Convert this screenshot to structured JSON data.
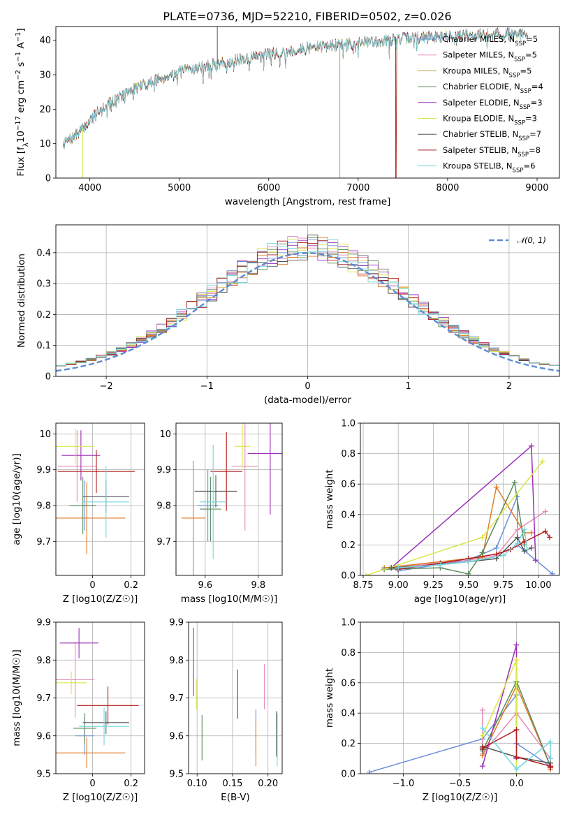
{
  "figure": {
    "title": "PLATE=0736, MJD=52210, FIBERID=0502, z=0.026"
  },
  "colors": {
    "Chabrier MILES": "#6a8fd6",
    "Salpeter MILES": "#e58ab8",
    "Kroupa MILES": "#c1a13a",
    "Chabrier ELODIE": "#5b8a5b",
    "Salpeter ELODIE": "#9b2fb8",
    "Kroupa ELODIE": "#d8e64a",
    "Chabrier STELIB": "#555555",
    "Salpeter STELIB": "#b01c1c",
    "Kroupa STELIB": "#72d6dc",
    "ELODIE green": "#5b8a5b",
    "Kroupa MILES age panels": "#e07b25"
  },
  "chart_data": [
    {
      "id": "spectrum",
      "type": "line",
      "xlabel": "wavelength [Angstrom, rest frame]",
      "ylabel": "Flux [f_λ10^-17 erg cm^-2 s^-1 A^-1]",
      "xlim": [
        3620,
        9250
      ],
      "ylim": [
        0,
        44
      ],
      "xticks": [
        4000,
        5000,
        6000,
        7000,
        8000,
        9000
      ],
      "yticks": [
        0,
        10,
        20,
        30,
        40
      ],
      "legend_position": "top-right",
      "legend": [
        {
          "model": "Chabrier MILES",
          "nssp": "5"
        },
        {
          "model": "Salpeter MILES",
          "nssp": "5"
        },
        {
          "model": "Kroupa MILES",
          "nssp": "5"
        },
        {
          "model": "Chabrier ELODIE",
          "nssp": "4"
        },
        {
          "model": "Salpeter ELODIE",
          "nssp": "3"
        },
        {
          "model": "Kroupa ELODIE",
          "nssp": "3"
        },
        {
          "model": "Chabrier STELIB",
          "nssp": "7"
        },
        {
          "model": "Salpeter STELIB",
          "nssp": "8"
        },
        {
          "model": "Kroupa STELIB",
          "nssp": "6"
        }
      ],
      "continuum": {
        "x": [
          3700,
          3800,
          3950,
          4100,
          4300,
          4500,
          4700,
          4900,
          5100,
          5300,
          5500,
          5700,
          5900,
          6100,
          6300,
          6500,
          6700,
          6900,
          7100,
          7300,
          7500,
          7700,
          7900,
          8100,
          8300,
          8500,
          8700,
          8900
        ],
        "y": [
          10,
          11.5,
          15,
          20,
          23,
          26,
          28,
          30,
          31.5,
          32.5,
          33.5,
          34.5,
          35.5,
          36.5,
          37,
          38,
          38.5,
          39,
          39.5,
          40,
          40.5,
          41,
          41,
          41.5,
          41.5,
          42,
          42,
          41.5
        ]
      },
      "features": [
        {
          "name": "Kroupa ELODIE dip near 3920",
          "x": 3920,
          "y": 0
        },
        {
          "name": "Chabrier STELIB spike near 5425",
          "x": 5425,
          "y": 44
        },
        {
          "name": "Kroupa MILES drop near 6795",
          "x": 6795,
          "y": 0
        },
        {
          "name": "Kroupa MILES cutoff near 7420",
          "x": 7420,
          "y": 0
        },
        {
          "name": "Salpeter STELIB cutoff near 7420",
          "x": 7420,
          "y": 0
        }
      ]
    },
    {
      "id": "residuals",
      "type": "step-histogram",
      "xlabel": "(data-model)/error",
      "ylabel": "Normed distribution",
      "xlim": [
        -2.5,
        2.5
      ],
      "ylim": [
        0,
        0.49
      ],
      "xticks": [
        -2,
        -1,
        0,
        1,
        2
      ],
      "yticks": [
        0.0,
        0.1,
        0.2,
        0.3,
        0.4
      ],
      "legend_position": "top-right",
      "reference_curve": {
        "label": "N(0,1)",
        "mu": 0,
        "sigma": 1
      },
      "bin_width": 0.1,
      "envelope_peak": 0.4
    },
    {
      "id": "age-vs-Z",
      "type": "errorbar",
      "xlabel": "Z [log10(Z/Z☉)]",
      "ylabel": "age  [log10(age/yr)]",
      "xlim": [
        -0.19,
        0.27
      ],
      "ylim": [
        9.605,
        10.03
      ],
      "xticks": [
        0.0,
        0.2
      ],
      "yticks": [
        9.7,
        9.8,
        9.9,
        10.0
      ],
      "points": [
        {
          "model": "Chabrier MILES",
          "x": -0.04,
          "xerr": 0.06,
          "y": 9.8,
          "yerr": 0.07
        },
        {
          "model": "Salpeter MILES",
          "x": -0.08,
          "xerr": 0.1,
          "y": 9.91,
          "yerr": 0.1
        },
        {
          "model": "Kroupa MILES",
          "x": -0.03,
          "xerr": 0.2,
          "y": 9.765,
          "yerr": 0.1
        },
        {
          "model": "Chabrier ELODIE",
          "x": -0.05,
          "xerr": 0.07,
          "y": 9.8,
          "yerr": 0.08
        },
        {
          "model": "Salpeter ELODIE",
          "x": -0.06,
          "xerr": 0.1,
          "y": 9.94,
          "yerr": 0.07
        },
        {
          "model": "Kroupa ELODIE",
          "x": -0.09,
          "xerr": 0.1,
          "y": 9.965,
          "yerr": 0.05
        },
        {
          "model": "Chabrier STELIB",
          "x": 0.07,
          "xerr": 0.12,
          "y": 9.825,
          "yerr": 0.045
        },
        {
          "model": "Salpeter STELIB",
          "x": 0.02,
          "xerr": 0.2,
          "y": 9.895,
          "yerr": 0.06
        },
        {
          "model": "Kroupa STELIB",
          "x": 0.07,
          "xerr": 0.12,
          "y": 9.81,
          "yerr": 0.1
        }
      ]
    },
    {
      "id": "age-vs-mass",
      "type": "errorbar",
      "xlabel": "mass [log10(M/M☉)]",
      "ylabel": "",
      "xlim": [
        9.49,
        9.89
      ],
      "ylim": [
        9.605,
        10.03
      ],
      "xticks": [
        9.6,
        9.8
      ],
      "yticks": [
        9.7,
        9.8,
        9.9,
        10.0
      ],
      "points": [
        {
          "model": "Chabrier MILES",
          "x": 9.61,
          "xerr": 0.04,
          "y": 9.8,
          "yerr": 0.1
        },
        {
          "model": "Salpeter MILES",
          "x": 9.75,
          "xerr": 0.05,
          "y": 9.91,
          "yerr": 0.18
        },
        {
          "model": "Kroupa MILES",
          "x": 9.555,
          "xerr": 0.045,
          "y": 9.765,
          "yerr": 0.16
        },
        {
          "model": "Chabrier ELODIE",
          "x": 9.62,
          "xerr": 0.04,
          "y": 9.79,
          "yerr": 0.09
        },
        {
          "model": "Salpeter ELODIE",
          "x": 9.845,
          "xerr": 0.085,
          "y": 9.945,
          "yerr": 0.17
        },
        {
          "model": "Kroupa ELODIE",
          "x": 9.74,
          "xerr": 0.03,
          "y": 9.965,
          "yerr": 0.06
        },
        {
          "model": "Chabrier STELIB",
          "x": 9.64,
          "xerr": 0.08,
          "y": 9.84,
          "yerr": 0.045
        },
        {
          "model": "Salpeter STELIB",
          "x": 9.68,
          "xerr": 0.06,
          "y": 9.895,
          "yerr": 0.11
        },
        {
          "model": "Kroupa STELIB",
          "x": 9.63,
          "xerr": 0.05,
          "y": 9.81,
          "yerr": 0.16
        }
      ]
    },
    {
      "id": "mass-weight-vs-age",
      "type": "line",
      "xlabel": "age  [log10(age/yr)]",
      "ylabel": "mass weight",
      "xlim": [
        8.73,
        10.15
      ],
      "ylim": [
        0,
        1
      ],
      "xticks": [
        8.75,
        9.0,
        9.25,
        9.5,
        9.75,
        10.0
      ],
      "xtick_labels": [
        "8.75",
        "9.00",
        "9.25",
        "9.50",
        "9.75",
        "10.00"
      ],
      "yticks": [
        0,
        0.2,
        0.4,
        0.6,
        0.8,
        1.0
      ],
      "ytick_labels": [
        "0.0",
        "0.2",
        "0.4",
        "0.6",
        "0.8",
        "1.0"
      ],
      "series": [
        {
          "model": "Chabrier MILES",
          "x": [
            9.0,
            9.5,
            9.7,
            9.85,
            9.85,
            10.1
          ],
          "y": [
            0.03,
            0.1,
            0.18,
            0.52,
            0.2,
            0.01
          ]
        },
        {
          "model": "Salpeter MILES",
          "x": [
            8.95,
            9.5,
            9.7,
            9.85,
            10.05
          ],
          "y": [
            0.05,
            0.1,
            0.13,
            0.3,
            0.42
          ]
        },
        {
          "model": "Kroupa MILES",
          "x": [
            8.9,
            9.6,
            9.7,
            9.9,
            9.95
          ],
          "y": [
            0.05,
            0.12,
            0.58,
            0.28,
            0.28
          ]
        },
        {
          "model": "Chabrier ELODIE",
          "x": [
            8.9,
            9.3,
            9.5,
            9.6,
            9.83,
            9.9
          ],
          "y": [
            0.04,
            0.05,
            0.01,
            0.15,
            0.61,
            0.2
          ]
        },
        {
          "model": "Salpeter ELODIE",
          "x": [
            8.95,
            9.95,
            9.98
          ],
          "y": [
            0.05,
            0.85,
            0.1
          ]
        },
        {
          "model": "Kroupa ELODIE",
          "x": [
            8.77,
            9.6,
            10.03
          ],
          "y": [
            0.0,
            0.25,
            0.75
          ]
        },
        {
          "model": "Chabrier STELIB",
          "x": [
            8.95,
            9.3,
            9.5,
            9.7,
            9.85,
            9.9,
            9.95
          ],
          "y": [
            0.05,
            0.07,
            0.09,
            0.11,
            0.25,
            0.16,
            0.18
          ]
        },
        {
          "model": "Salpeter STELIB",
          "x": [
            9.0,
            9.3,
            9.5,
            9.7,
            9.8,
            9.9,
            10.05,
            10.08
          ],
          "y": [
            0.04,
            0.08,
            0.11,
            0.14,
            0.17,
            0.22,
            0.29,
            0.25
          ]
        },
        {
          "model": "Kroupa STELIB",
          "x": [
            9.0,
            9.3,
            9.5,
            9.75,
            9.85,
            9.9,
            9.92
          ],
          "y": [
            0.05,
            0.07,
            0.09,
            0.13,
            0.21,
            0.3,
            0.17
          ]
        }
      ]
    },
    {
      "id": "mass-vs-Z",
      "type": "errorbar",
      "xlabel": "Z [log10(Z/Z☉)]",
      "ylabel": "mass [log10(M/M☉)]",
      "xlim": [
        -0.19,
        0.27
      ],
      "ylim": [
        9.5,
        9.9
      ],
      "xticks": [
        0.0,
        0.2
      ],
      "yticks": [
        9.5,
        9.6,
        9.7,
        9.8,
        9.9
      ],
      "points": [
        {
          "model": "Chabrier MILES",
          "x": -0.04,
          "xerr": 0.05,
          "y": 9.6,
          "yerr": 0.05
        },
        {
          "model": "Salpeter MILES",
          "x": -0.09,
          "xerr": 0.1,
          "y": 9.748,
          "yerr": 0.1
        },
        {
          "model": "Kroupa MILES",
          "x": -0.03,
          "xerr": 0.2,
          "y": 9.555,
          "yerr": 0.04
        },
        {
          "model": "Chabrier ELODIE",
          "x": -0.04,
          "xerr": 0.06,
          "y": 9.62,
          "yerr": 0.04
        },
        {
          "model": "Salpeter ELODIE",
          "x": -0.07,
          "xerr": 0.1,
          "y": 9.845,
          "yerr": 0.04
        },
        {
          "model": "Kroupa ELODIE",
          "x": -0.11,
          "xerr": 0.08,
          "y": 9.74,
          "yerr": 0.03
        },
        {
          "model": "Chabrier STELIB",
          "x": 0.07,
          "xerr": 0.12,
          "y": 9.635,
          "yerr": 0.03
        },
        {
          "model": "Salpeter STELIB",
          "x": 0.08,
          "xerr": 0.16,
          "y": 9.68,
          "yerr": 0.05
        },
        {
          "model": "Kroupa STELIB",
          "x": 0.06,
          "xerr": 0.13,
          "y": 9.625,
          "yerr": 0.05
        }
      ]
    },
    {
      "id": "mass-vs-EBV",
      "type": "errorbar",
      "xlabel": "E(B-V)",
      "ylabel": "",
      "xlim": [
        0.088,
        0.22
      ],
      "ylim": [
        9.5,
        9.9
      ],
      "xticks": [
        0.1,
        0.15,
        0.2
      ],
      "xtick_labels": [
        "0.10",
        "0.15",
        "0.20"
      ],
      "yticks": [
        9.5,
        9.6,
        9.7,
        9.8,
        9.9
      ],
      "points": [
        {
          "model": "Chabrier MILES",
          "x": 0.183,
          "xerr": 0,
          "y": 9.61,
          "yerr": 0.06
        },
        {
          "model": "Salpeter MILES",
          "x": 0.195,
          "xerr": 0,
          "y": 9.73,
          "yerr": 0.06
        },
        {
          "model": "Kroupa MILES",
          "x": 0.183,
          "xerr": 0,
          "y": 9.58,
          "yerr": 0.06
        },
        {
          "model": "Chabrier ELODIE",
          "x": 0.107,
          "xerr": 0,
          "y": 9.595,
          "yerr": 0.06
        },
        {
          "model": "Salpeter ELODIE",
          "x": 0.095,
          "xerr": 0,
          "y": 9.795,
          "yerr": 0.09
        },
        {
          "model": "Kroupa ELODIE",
          "x": 0.099,
          "xerr": 0,
          "y": 9.71,
          "yerr": 0.04
        },
        {
          "model": "Chabrier STELIB",
          "x": 0.212,
          "xerr": 0,
          "y": 9.605,
          "yerr": 0.06
        },
        {
          "model": "Salpeter STELIB",
          "x": 0.157,
          "xerr": 0,
          "y": 9.71,
          "yerr": 0.065
        },
        {
          "model": "Kroupa STELIB",
          "x": 0.213,
          "xerr": 0,
          "y": 9.59,
          "yerr": 0.07
        }
      ]
    },
    {
      "id": "mass-weight-vs-Z",
      "type": "line",
      "xlabel": "Z [log10(Z/Z☉)]",
      "ylabel": "mass weight",
      "xlim": [
        -1.38,
        0.38
      ],
      "ylim": [
        0,
        1
      ],
      "xticks": [
        -1.0,
        -0.5,
        0.0
      ],
      "xtick_labels": [
        "−1.0",
        "−0.5",
        "0.0"
      ],
      "yticks": [
        0,
        0.2,
        0.4,
        0.6,
        0.8,
        1.0
      ],
      "ytick_labels": [
        "0.0",
        "0.2",
        "0.4",
        "0.6",
        "0.8",
        "1.0"
      ],
      "series": [
        {
          "model": "Chabrier MILES",
          "x": [
            -1.3,
            -0.3,
            0.0,
            0.0,
            0.3
          ],
          "y": [
            0.01,
            0.23,
            0.52,
            0.2,
            0.05
          ]
        },
        {
          "model": "Salpeter MILES",
          "x": [
            -0.3,
            -0.3,
            0.0,
            0.3,
            0.3
          ],
          "y": [
            0.42,
            0.13,
            0.4,
            0.1,
            0.03
          ]
        },
        {
          "model": "Kroupa MILES",
          "x": [
            -0.3,
            0.0,
            0.3,
            0.3
          ],
          "y": [
            0.12,
            0.58,
            0.05,
            0.03
          ]
        },
        {
          "model": "Chabrier ELODIE",
          "x": [
            -0.3,
            0.0,
            0.3
          ],
          "y": [
            0.15,
            0.61,
            0.05
          ]
        },
        {
          "model": "Salpeter ELODIE",
          "x": [
            -0.3,
            0.0,
            0.0
          ],
          "y": [
            0.05,
            0.85,
            0.1
          ]
        },
        {
          "model": "Kroupa ELODIE",
          "x": [
            -0.3,
            0.0,
            0.0
          ],
          "y": [
            0.25,
            0.75,
            0.0
          ]
        },
        {
          "model": "Chabrier STELIB",
          "x": [
            -0.3,
            -0.3,
            0.0,
            0.3,
            0.3
          ],
          "y": [
            0.16,
            0.18,
            0.11,
            0.07,
            0.05
          ]
        },
        {
          "model": "Salpeter STELIB",
          "x": [
            -0.3,
            0.0,
            0.0,
            0.3,
            0.3
          ],
          "y": [
            0.17,
            0.29,
            0.11,
            0.05,
            0.04
          ]
        },
        {
          "model": "Kroupa STELIB",
          "x": [
            -0.3,
            0.0,
            0.3,
            0.3
          ],
          "y": [
            0.3,
            0.03,
            0.21,
            0.1
          ]
        }
      ]
    }
  ]
}
